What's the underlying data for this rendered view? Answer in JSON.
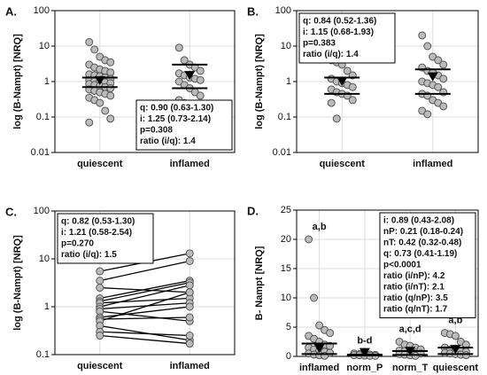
{
  "chart_data": [
    {
      "type": "strip",
      "panel_label": "A.",
      "ylabel": "log (B-Nampt) [NRQ]",
      "log": true,
      "grid": true,
      "ylim": [
        0.01,
        100
      ],
      "yticks": [
        0.01,
        0.1,
        1,
        10,
        100
      ],
      "categories": [
        "quiescent",
        "inflamed"
      ],
      "values": [
        [
          13,
          8,
          5,
          4,
          3.5,
          3,
          2.5,
          2.2,
          2,
          1.8,
          1.6,
          1.5,
          1.4,
          1.3,
          1.2,
          1.1,
          1.05,
          1,
          0.95,
          0.9,
          0.85,
          0.8,
          0.75,
          0.7,
          0.65,
          0.6,
          0.55,
          0.5,
          0.45,
          0.4,
          0.35,
          0.3,
          0.25,
          0.15,
          0.09,
          0.07
        ],
        [
          9,
          4,
          3,
          2.5,
          2,
          1.7,
          1.5,
          1.3,
          1.2,
          1.1,
          1,
          0.8,
          0.65,
          0.5,
          0.4,
          0.3,
          0.25
        ]
      ],
      "median": [
        0.9,
        1.25
      ],
      "q1": [
        0.7,
        0.65
      ],
      "q3": [
        1.3,
        3
      ],
      "box_corner": "lower right",
      "box": [
        "q: 0.90 (0.63-1.30)",
        "i: 1.25 (0.73-2.14)",
        "p=0.308",
        "ratio (i/q):  1.4"
      ]
    },
    {
      "type": "strip",
      "panel_label": "B.",
      "ylabel": "log (B-Nampt) [NRQ]",
      "log": true,
      "grid": true,
      "ylim": [
        0.01,
        100
      ],
      "yticks": [
        0.01,
        0.1,
        1,
        10,
        100
      ],
      "categories": [
        "quiescent",
        "inflamed"
      ],
      "values": [
        [
          4,
          3.5,
          3,
          2,
          1.5,
          1.2,
          1,
          0.9,
          0.8,
          0.7,
          0.6,
          0.5,
          0.45,
          0.4,
          0.3,
          0.25,
          0.09
        ],
        [
          20,
          10,
          5,
          4,
          3,
          2.5,
          2,
          1.8,
          1.5,
          1.2,
          1,
          0.9,
          0.8,
          0.7,
          0.5,
          0.45,
          0.4,
          0.3,
          0.25,
          0.2,
          0.15,
          0.12
        ]
      ],
      "median": [
        0.84,
        1.15
      ],
      "q1": [
        0.45,
        0.45
      ],
      "q3": [
        1.3,
        2.2
      ],
      "box_corner": "upper left",
      "box": [
        "q: 0.84 (0.52-1.36)",
        "i: 1.15 (0.68-1.93)",
        "p=0.383",
        "ratio (i/q):  1.4"
      ]
    },
    {
      "type": "paired",
      "panel_label": "C.",
      "ylabel": "log (B-Nampt) [NRQ]",
      "log": true,
      "grid": true,
      "ylim": [
        0.1,
        100
      ],
      "yticks": [
        0.1,
        1,
        10,
        100
      ],
      "categories": [
        "quiescent",
        "inflamed"
      ],
      "values": [
        [
          5.5,
          3.5,
          2.5,
          1.5,
          1.3,
          1.2,
          1,
          0.9,
          0.8,
          0.6,
          0.55,
          0.5,
          0.4,
          0.3,
          0.25
        ],
        [
          13,
          9,
          2,
          3.5,
          3.2,
          1.5,
          2.8,
          1.2,
          0.5,
          1,
          0.6,
          2,
          0.2,
          0.25,
          0.17
        ]
      ],
      "box_corner": "upper left",
      "box": [
        "q: 0.82 (0.53-1.30)",
        "i: 1.21 (0.58-2.54)",
        "p=0.270",
        "ratio (i/q):  1.5"
      ]
    },
    {
      "type": "strip",
      "panel_label": "D.",
      "ylabel": "B- Nampt [NRQ]",
      "log": false,
      "grid": true,
      "ylim": [
        0,
        25
      ],
      "yticks": [
        0,
        5,
        10,
        15,
        20,
        25
      ],
      "categories": [
        "inflamed",
        "norm_P",
        "norm_T",
        "quiescent"
      ],
      "values": [
        [
          20,
          10,
          5.3,
          4.5,
          4,
          3.5,
          3,
          2.5,
          2,
          1.8,
          1.5,
          1.2,
          1,
          0.8,
          0.6,
          0.5,
          0.3,
          0.2,
          0.1
        ],
        [
          0.5,
          0.4,
          0.35,
          0.3,
          0.25,
          0.2,
          0.2,
          0.15,
          0.1,
          0.1
        ],
        [
          2.5,
          2,
          1.8,
          1.5,
          1.2,
          1,
          0.9,
          0.8,
          0.6,
          0.5,
          0.4,
          0.3,
          0.2,
          0.1
        ],
        [
          4,
          3.8,
          3.5,
          2.5,
          2,
          1.5,
          1.2,
          1,
          0.9,
          0.8,
          0.6,
          0.5,
          0.4,
          0.3,
          0.2
        ]
      ],
      "median": [
        0.89,
        0.21,
        0.42,
        0.73
      ],
      "q1": [
        0.4,
        0.15,
        0.25,
        0.4
      ],
      "q3": [
        2.2,
        0.3,
        0.9,
        1.5
      ],
      "group_labels": [
        "a,b",
        "b-d",
        "a,c,d",
        "a,b"
      ],
      "box_corner": "upper right",
      "box": [
        "i: 0.89 (0.43-2.08)",
        "nP: 0.21 (0.18-0.24)",
        "nT: 0.42 (0.32-0.48)",
        "q: 0.73 (0.41-1.19)",
        "p<0.0001",
        "ratio (i/nP): 4.2",
        "ratio (i/nT): 2.1",
        "ratio (q/nP): 3.5",
        "ratio (q/nT): 1.7"
      ]
    }
  ]
}
